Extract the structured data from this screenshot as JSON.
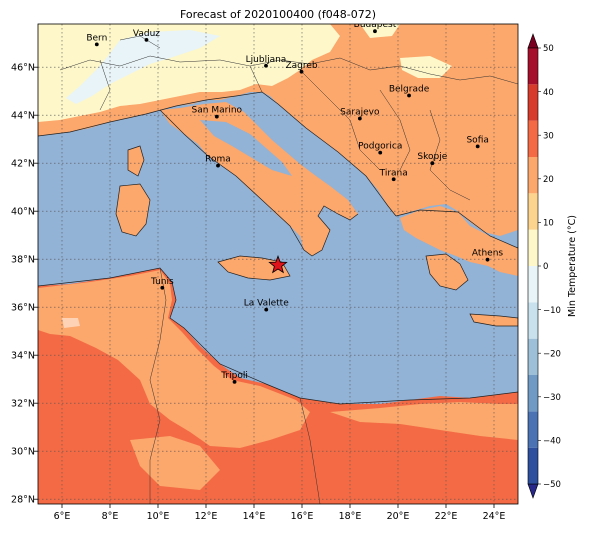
{
  "title": "Forecast of 2020100400 (f048-072)",
  "x_ticks": [
    {
      "lon": 6,
      "label": "6°E"
    },
    {
      "lon": 8,
      "label": "8°E"
    },
    {
      "lon": 10,
      "label": "10°E"
    },
    {
      "lon": 12,
      "label": "12°E"
    },
    {
      "lon": 14,
      "label": "14°E"
    },
    {
      "lon": 16,
      "label": "16°E"
    },
    {
      "lon": 18,
      "label": "18°E"
    },
    {
      "lon": 20,
      "label": "20°E"
    },
    {
      "lon": 22,
      "label": "22°E"
    },
    {
      "lon": 24,
      "label": "24°E"
    }
  ],
  "y_ticks": [
    {
      "lat": 28,
      "label": "28°N"
    },
    {
      "lat": 30,
      "label": "30°N"
    },
    {
      "lat": 32,
      "label": "32°N"
    },
    {
      "lat": 34,
      "label": "34°N"
    },
    {
      "lat": 36,
      "label": "36°N"
    },
    {
      "lat": 38,
      "label": "38°N"
    },
    {
      "lat": 40,
      "label": "40°N"
    },
    {
      "lat": 42,
      "label": "42°N"
    },
    {
      "lat": 44,
      "label": "44°N"
    },
    {
      "lat": 46,
      "label": "46°N"
    }
  ],
  "cities": [
    {
      "name": "Bern",
      "lon": 7.45,
      "lat": 46.95
    },
    {
      "name": "Vaduz",
      "lon": 9.52,
      "lat": 47.14
    },
    {
      "name": "Budapest",
      "lon": 19.04,
      "lat": 47.5
    },
    {
      "name": "Ljubljana",
      "lon": 14.5,
      "lat": 46.06
    },
    {
      "name": "Zagreb",
      "lon": 15.98,
      "lat": 45.81
    },
    {
      "name": "Belgrade",
      "lon": 20.46,
      "lat": 44.82
    },
    {
      "name": "San Marino",
      "lon": 12.45,
      "lat": 43.94
    },
    {
      "name": "Sarajevo",
      "lon": 18.41,
      "lat": 43.86
    },
    {
      "name": "Sofia",
      "lon": 23.32,
      "lat": 42.7
    },
    {
      "name": "Roma",
      "lon": 12.5,
      "lat": 41.9
    },
    {
      "name": "Podgorica",
      "lon": 19.26,
      "lat": 42.44
    },
    {
      "name": "Skopje",
      "lon": 21.43,
      "lat": 42.0
    },
    {
      "name": "Tirana",
      "lon": 19.82,
      "lat": 41.33
    },
    {
      "name": "Athens",
      "lon": 23.73,
      "lat": 37.98
    },
    {
      "name": "Tunis",
      "lon": 10.18,
      "lat": 36.81
    },
    {
      "name": "La Valette",
      "lon": 14.51,
      "lat": 35.9
    },
    {
      "name": "Tripoli",
      "lon": 13.19,
      "lat": 32.89
    }
  ],
  "star": {
    "lon": 15.0,
    "lat": 37.75
  },
  "colorbar": {
    "label": "Min Temperature (°C)",
    "ticks": [
      -50,
      -40,
      -30,
      -20,
      -10,
      0,
      10,
      20,
      30,
      40,
      50
    ],
    "colors": [
      "#27288a",
      "#2d4f9e",
      "#4b73b3",
      "#7099c4",
      "#9dbfd8",
      "#c9e1ec",
      "#e8f4f8",
      "#fdf7c9",
      "#fdd48d",
      "#fca76b",
      "#f36a45",
      "#d63b2c",
      "#a50f2b",
      "#7a0022"
    ]
  },
  "palette": {
    "sea": "#92b2d6",
    "land_warm": "#fca76b",
    "land_hot": "#f36a45",
    "land_mild": "#fdf7c9",
    "alpine": "#e8f4f8"
  }
}
